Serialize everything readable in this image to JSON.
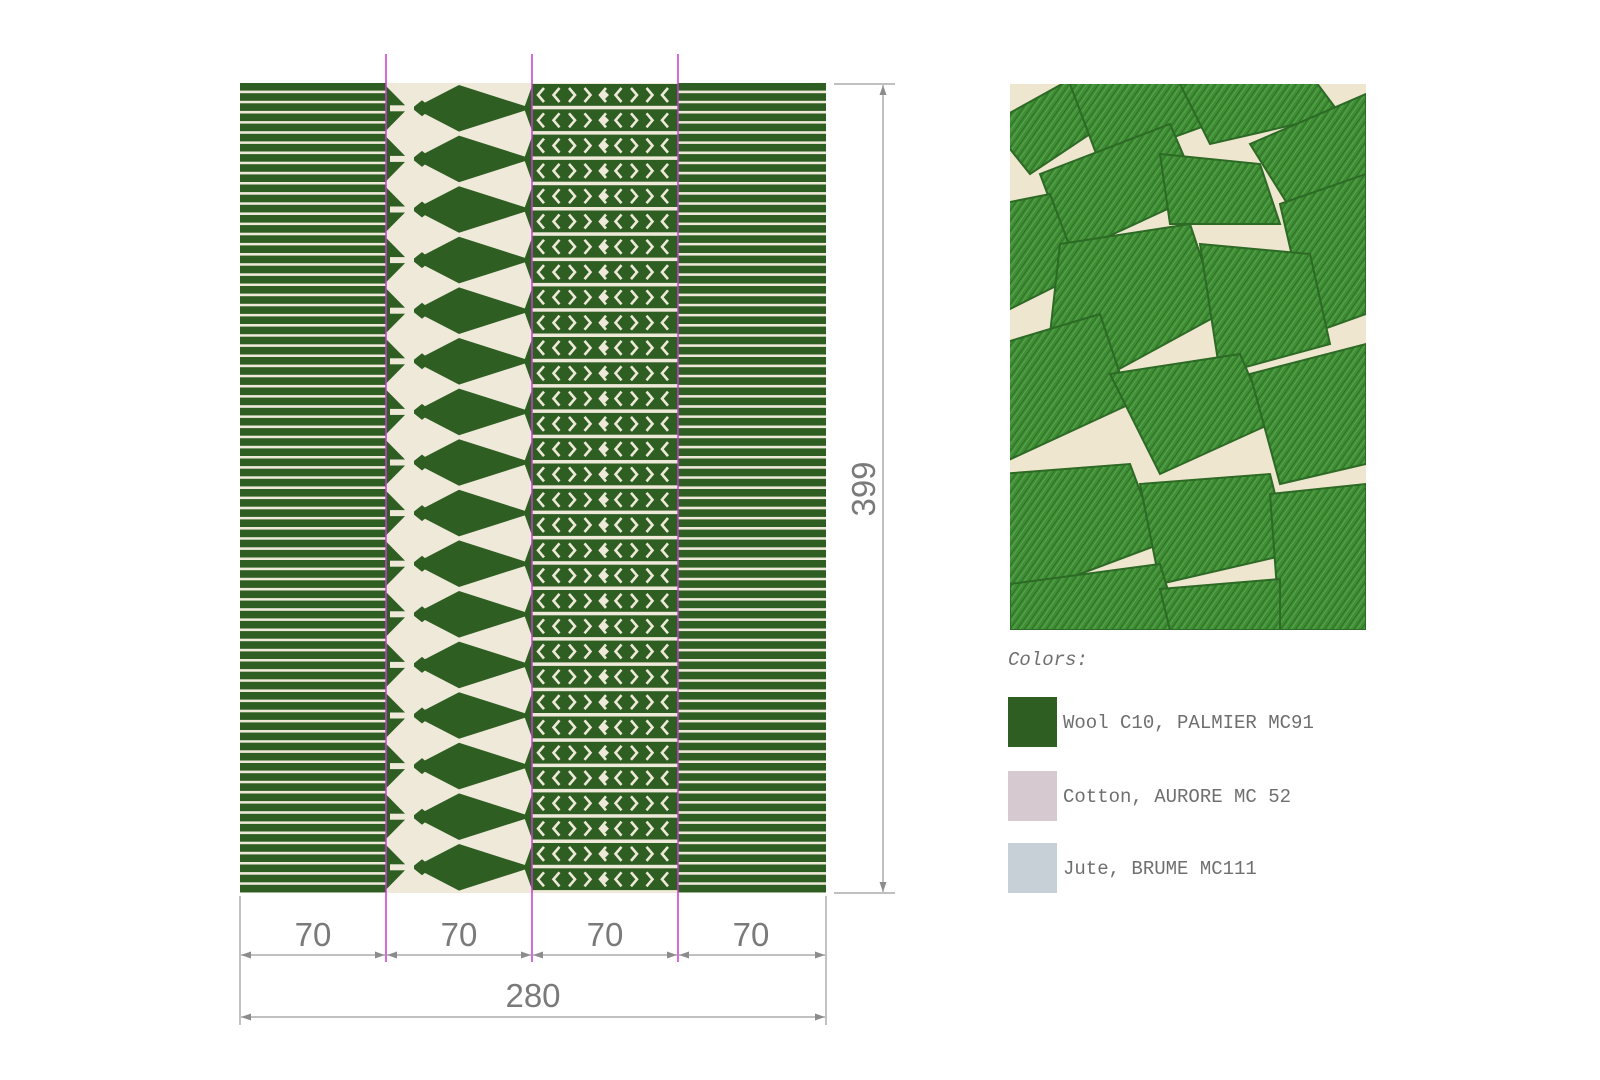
{
  "dimensions": {
    "segments": [
      "70",
      "70",
      "70",
      "70"
    ],
    "total_width": "280",
    "height": "399"
  },
  "legend": {
    "title": "Colors:",
    "items": [
      {
        "label": "Wool C10, PALMIER MC91",
        "color": "#2f5e23"
      },
      {
        "label": "Cotton, AURORE MC 52",
        "color": "#d7c9d0"
      },
      {
        "label": "Jute, BRUME MC111",
        "color": "#c6d0d6"
      }
    ]
  },
  "colors": {
    "rug_green": "#2f5e23",
    "rug_base": "#efe9da",
    "guide_line": "#c83ad2",
    "dimension_line": "#8c8c8c",
    "photo_green": "#3f8d35",
    "photo_base": "#efe6cf"
  }
}
